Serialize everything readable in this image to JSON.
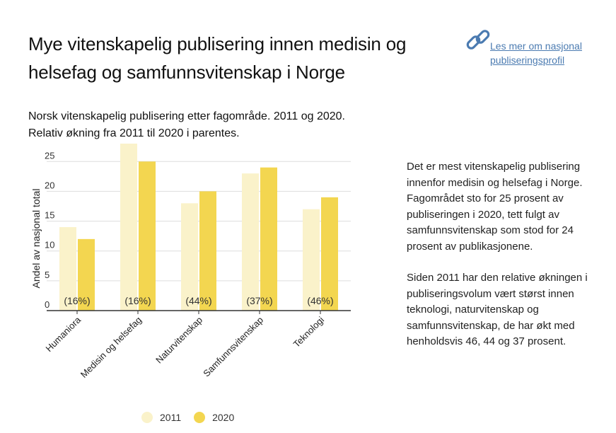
{
  "header": {
    "title": "Mye vitenskapelig publisering innen medisin og helsefag og samfunnsvitenskap i Norge",
    "link_text": "Les mer om nasjonal publiseringsprofil"
  },
  "description": {
    "paragraphs": [
      "Det er mest vitenskapelig publisering innenfor medisin og helsefag i Norge. Fagområdet sto for 25 prosent av publiseringen i 2020, tett fulgt av samfunnsvitenskap som stod for 24 prosent av publikasjonene.",
      "Siden 2011 har den relative økningen i publiseringsvolum vært størst innen teknologi, naturvitenskap og samfunnsvitenskap, de har økt med henholdsvis 46, 44 og 37 prosent."
    ]
  },
  "chart_data": {
    "type": "bar",
    "title": "Norsk vitenskapelig publisering etter fagområde. 2011 og 2020. Relativ økning fra 2011 til 2020 i parentes.",
    "xlabel": "",
    "ylabel": "Andel av nasjonal total",
    "ylim": [
      0,
      28
    ],
    "yticks": [
      0,
      5,
      10,
      15,
      20,
      25
    ],
    "grid": true,
    "categories": [
      "Humaniora",
      "Medisin og helsefag",
      "Naturvitenskap",
      "Samfunnsvitenskap",
      "Teknologi"
    ],
    "series": [
      {
        "name": "2011",
        "color": "#faf2ca",
        "values": [
          14,
          28,
          18,
          23,
          17
        ]
      },
      {
        "name": "2020",
        "color": "#f3d650",
        "values": [
          12,
          25,
          20,
          24,
          19
        ]
      }
    ],
    "annotations": [
      "(16%)",
      "(16%)",
      "(44%)",
      "(37%)",
      "(46%)"
    ],
    "legend_position": "bottom"
  },
  "colors": {
    "link": "#4b7bb1",
    "gridline": "#dddddd",
    "axis": "#333333"
  },
  "icons": {
    "link": "chain-link-icon"
  }
}
